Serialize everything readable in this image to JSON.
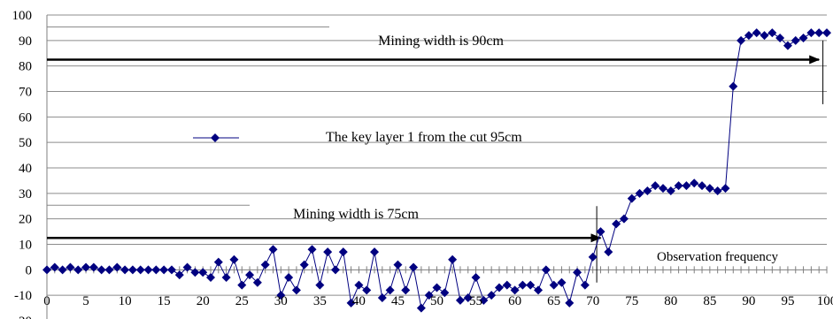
{
  "chart_data": {
    "type": "line",
    "title": "",
    "xlabel": "Observation frequency",
    "ylabel": "",
    "xlim": [
      0,
      100
    ],
    "ylim": [
      -20,
      100
    ],
    "x_ticks": [
      0,
      5,
      10,
      15,
      20,
      25,
      30,
      35,
      40,
      45,
      50,
      55,
      60,
      65,
      70,
      75,
      80,
      85,
      90,
      95,
      100
    ],
    "y_ticks": [
      -20,
      -10,
      0,
      10,
      20,
      30,
      40,
      50,
      60,
      70,
      80,
      90,
      100
    ],
    "grid": "horizontal",
    "legend": {
      "position": "center-left"
    },
    "series": [
      {
        "name": "The key layer 1 from the cut 95cm",
        "color": "#000080",
        "marker": "diamond",
        "x": [
          0,
          1,
          2,
          3,
          4,
          5,
          6,
          7,
          8,
          9,
          10,
          11,
          12,
          13,
          14,
          15,
          16,
          17,
          18,
          19,
          20,
          21,
          22,
          23,
          24,
          25,
          26,
          27,
          28,
          29,
          30,
          31,
          32,
          33,
          34,
          35,
          36,
          37,
          38,
          39,
          40,
          41,
          42,
          43,
          44,
          45,
          46,
          47,
          48,
          49,
          50,
          51,
          52,
          53,
          54,
          55,
          56,
          57,
          58,
          59,
          60,
          61,
          62,
          63,
          64,
          65,
          66,
          67,
          68,
          69,
          70,
          71,
          72,
          73,
          74,
          75,
          76,
          77,
          78,
          79,
          80,
          81,
          82,
          83,
          84,
          85,
          86,
          87,
          88,
          89,
          90,
          91,
          92,
          93,
          94,
          95,
          96,
          97,
          98,
          99,
          100
        ],
        "y": [
          0,
          1,
          0,
          1,
          0,
          1,
          1,
          0,
          0,
          1,
          0,
          0,
          0,
          0,
          0,
          0,
          0,
          -2,
          1,
          -1,
          -1,
          -3,
          3,
          -3,
          4,
          -6,
          -2,
          -5,
          2,
          8,
          -10,
          -3,
          -8,
          2,
          8,
          -6,
          7,
          0,
          7,
          -13,
          -6,
          -8,
          7,
          -11,
          -8,
          2,
          -8,
          1,
          -15,
          -10,
          -7,
          -9,
          4,
          -12,
          -11,
          -3,
          -12,
          -10,
          -7,
          -6,
          -8,
          -6,
          -6,
          -8,
          0,
          -6,
          -5,
          -13,
          -1,
          -6,
          5,
          15,
          7,
          18,
          20,
          28,
          30,
          31,
          33,
          32,
          31,
          33,
          33,
          34,
          33,
          32,
          31,
          32,
          72,
          90,
          92,
          93,
          92,
          93,
          91,
          88,
          90,
          91,
          93,
          93,
          93
        ]
      }
    ],
    "annotations": [
      {
        "text": "Mining width is 90cm",
        "arrow_y": 82.5,
        "arrow_to_x": 99
      },
      {
        "text": "Mining width is 75cm",
        "arrow_y": 12.5,
        "arrow_to_x": 71
      }
    ]
  }
}
